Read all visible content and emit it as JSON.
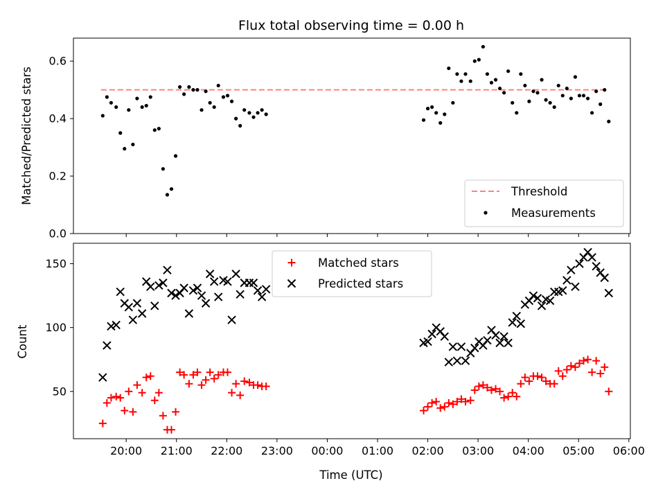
{
  "chart_data": [
    {
      "type": "scatter",
      "title": "Flux total observing time = 0.00 h",
      "xlabel": "",
      "ylabel": "Matched/Predicted stars",
      "ylim": [
        0,
        0.68
      ],
      "yticks": [
        "0.0",
        "0.2",
        "0.4",
        "0.6"
      ],
      "xlim_hours": [
        18.95,
        30.03
      ],
      "legend_position": "lower-right",
      "grid": false,
      "threshold": {
        "name": "Threshold",
        "y": 0.5,
        "x_start": "19:30",
        "x_end": "05:35",
        "color": "#ff8080",
        "style": "dashed"
      },
      "series": [
        {
          "name": "Measurements",
          "marker": "dot",
          "color": "#000000",
          "points": [
            [
              "19:32",
              0.41
            ],
            [
              "19:37",
              0.475
            ],
            [
              "19:42",
              0.455
            ],
            [
              "19:48",
              0.44
            ],
            [
              "19:53",
              0.35
            ],
            [
              "19:58",
              0.295
            ],
            [
              "20:03",
              0.43
            ],
            [
              "20:08",
              0.31
            ],
            [
              "20:13",
              0.47
            ],
            [
              "20:19",
              0.44
            ],
            [
              "20:24",
              0.445
            ],
            [
              "20:29",
              0.475
            ],
            [
              "20:34",
              0.36
            ],
            [
              "20:39",
              0.365
            ],
            [
              "20:44",
              0.225
            ],
            [
              "20:49",
              0.135
            ],
            [
              "20:54",
              0.155
            ],
            [
              "20:59",
              0.27
            ],
            [
              "21:04",
              0.51
            ],
            [
              "21:09",
              0.485
            ],
            [
              "21:15",
              0.51
            ],
            [
              "21:20",
              0.5
            ],
            [
              "21:25",
              0.5
            ],
            [
              "21:30",
              0.43
            ],
            [
              "21:35",
              0.495
            ],
            [
              "21:40",
              0.455
            ],
            [
              "21:45",
              0.44
            ],
            [
              "21:50",
              0.515
            ],
            [
              "21:56",
              0.475
            ],
            [
              "22:01",
              0.48
            ],
            [
              "22:06",
              0.46
            ],
            [
              "22:11",
              0.4
            ],
            [
              "22:16",
              0.375
            ],
            [
              "22:21",
              0.43
            ],
            [
              "22:27",
              0.42
            ],
            [
              "22:32",
              0.405
            ],
            [
              "22:37",
              0.42
            ],
            [
              "22:42",
              0.43
            ],
            [
              "22:47",
              0.415
            ],
            [
              "01:55",
              0.395
            ],
            [
              "02:00",
              0.435
            ],
            [
              "02:05",
              0.44
            ],
            [
              "02:10",
              0.42
            ],
            [
              "02:15",
              0.385
            ],
            [
              "02:20",
              0.415
            ],
            [
              "02:25",
              0.575
            ],
            [
              "02:30",
              0.455
            ],
            [
              "02:35",
              0.555
            ],
            [
              "02:40",
              0.53
            ],
            [
              "02:45",
              0.555
            ],
            [
              "02:51",
              0.53
            ],
            [
              "02:56",
              0.6
            ],
            [
              "03:01",
              0.605
            ],
            [
              "03:06",
              0.65
            ],
            [
              "03:11",
              0.555
            ],
            [
              "03:16",
              0.525
            ],
            [
              "03:21",
              0.535
            ],
            [
              "03:26",
              0.505
            ],
            [
              "03:31",
              0.49
            ],
            [
              "03:36",
              0.565
            ],
            [
              "03:41",
              0.455
            ],
            [
              "03:46",
              0.42
            ],
            [
              "03:51",
              0.555
            ],
            [
              "03:56",
              0.515
            ],
            [
              "04:01",
              0.46
            ],
            [
              "04:06",
              0.495
            ],
            [
              "04:11",
              0.49
            ],
            [
              "04:16",
              0.535
            ],
            [
              "04:21",
              0.465
            ],
            [
              "04:26",
              0.455
            ],
            [
              "04:31",
              0.44
            ],
            [
              "04:36",
              0.515
            ],
            [
              "04:41",
              0.48
            ],
            [
              "04:46",
              0.505
            ],
            [
              "04:51",
              0.47
            ],
            [
              "04:56",
              0.545
            ],
            [
              "05:01",
              0.48
            ],
            [
              "05:06",
              0.48
            ],
            [
              "05:11",
              0.47
            ],
            [
              "05:16",
              0.42
            ],
            [
              "05:21",
              0.495
            ],
            [
              "05:26",
              0.45
            ],
            [
              "05:31",
              0.5
            ],
            [
              "05:36",
              0.39
            ]
          ]
        }
      ]
    },
    {
      "type": "scatter",
      "title": "",
      "xlabel": "Time (UTC)",
      "ylabel": "Count",
      "ylim": [
        13,
        166
      ],
      "yticks": [
        "50",
        "100",
        "150"
      ],
      "xlim_hours": [
        18.95,
        30.03
      ],
      "xticks": [
        "20:00",
        "21:00",
        "22:00",
        "23:00",
        "00:00",
        "01:00",
        "02:00",
        "03:00",
        "04:00",
        "05:00",
        "06:00"
      ],
      "legend_position": "upper-center",
      "grid": false,
      "series": [
        {
          "name": "Matched stars",
          "marker": "plus",
          "color": "#ff0000",
          "points": [
            [
              "19:32",
              25
            ],
            [
              "19:37",
              41
            ],
            [
              "19:42",
              45
            ],
            [
              "19:48",
              46
            ],
            [
              "19:53",
              45
            ],
            [
              "19:58",
              35
            ],
            [
              "20:03",
              50
            ],
            [
              "20:08",
              34
            ],
            [
              "20:13",
              55
            ],
            [
              "20:19",
              49
            ],
            [
              "20:24",
              61
            ],
            [
              "20:29",
              62
            ],
            [
              "20:34",
              43
            ],
            [
              "20:39",
              49
            ],
            [
              "20:44",
              31
            ],
            [
              "20:49",
              20
            ],
            [
              "20:54",
              20
            ],
            [
              "20:59",
              34
            ],
            [
              "21:04",
              65
            ],
            [
              "21:09",
              63
            ],
            [
              "21:15",
              56
            ],
            [
              "21:20",
              63
            ],
            [
              "21:25",
              65
            ],
            [
              "21:30",
              55
            ],
            [
              "21:35",
              59
            ],
            [
              "21:40",
              65
            ],
            [
              "21:45",
              60
            ],
            [
              "21:50",
              63
            ],
            [
              "21:56",
              65
            ],
            [
              "22:01",
              65
            ],
            [
              "22:06",
              49
            ],
            [
              "22:11",
              56
            ],
            [
              "22:16",
              47
            ],
            [
              "22:21",
              58
            ],
            [
              "22:27",
              57
            ],
            [
              "22:32",
              55
            ],
            [
              "22:37",
              55
            ],
            [
              "22:42",
              54
            ],
            [
              "22:47",
              54
            ],
            [
              "01:55",
              35
            ],
            [
              "02:00",
              38
            ],
            [
              "02:05",
              41
            ],
            [
              "02:10",
              42
            ],
            [
              "02:15",
              37
            ],
            [
              "02:20",
              38
            ],
            [
              "02:25",
              41
            ],
            [
              "02:30",
              40
            ],
            [
              "02:35",
              42
            ],
            [
              "02:40",
              44
            ],
            [
              "02:45",
              42
            ],
            [
              "02:51",
              43
            ],
            [
              "02:56",
              51
            ],
            [
              "03:01",
              54
            ],
            [
              "03:06",
              55
            ],
            [
              "03:11",
              53
            ],
            [
              "03:16",
              51
            ],
            [
              "03:21",
              52
            ],
            [
              "03:26",
              50
            ],
            [
              "03:31",
              45
            ],
            [
              "03:36",
              46
            ],
            [
              "03:41",
              49
            ],
            [
              "03:46",
              46
            ],
            [
              "03:51",
              56
            ],
            [
              "03:56",
              61
            ],
            [
              "04:01",
              58
            ],
            [
              "04:06",
              62
            ],
            [
              "04:11",
              62
            ],
            [
              "04:16",
              61
            ],
            [
              "04:21",
              58
            ],
            [
              "04:26",
              56
            ],
            [
              "04:31",
              56
            ],
            [
              "04:36",
              66
            ],
            [
              "04:41",
              62
            ],
            [
              "04:46",
              67
            ],
            [
              "04:51",
              70
            ],
            [
              "04:56",
              69
            ],
            [
              "05:01",
              72
            ],
            [
              "05:06",
              74
            ],
            [
              "05:11",
              75
            ],
            [
              "05:16",
              65
            ],
            [
              "05:21",
              74
            ],
            [
              "05:26",
              64
            ],
            [
              "05:31",
              69
            ],
            [
              "05:36",
              50
            ]
          ]
        },
        {
          "name": "Predicted stars",
          "marker": "x",
          "color": "#000000",
          "points": [
            [
              "19:32",
              61
            ],
            [
              "19:37",
              86
            ],
            [
              "19:42",
              101
            ],
            [
              "19:48",
              102
            ],
            [
              "19:53",
              128
            ],
            [
              "19:58",
              119
            ],
            [
              "20:03",
              116
            ],
            [
              "20:08",
              106
            ],
            [
              "20:13",
              119
            ],
            [
              "20:19",
              111
            ],
            [
              "20:24",
              136
            ],
            [
              "20:29",
              132
            ],
            [
              "20:34",
              117
            ],
            [
              "20:39",
              133
            ],
            [
              "20:44",
              135
            ],
            [
              "20:49",
              145
            ],
            [
              "20:54",
              127
            ],
            [
              "20:59",
              125
            ],
            [
              "21:04",
              127
            ],
            [
              "21:09",
              131
            ],
            [
              "21:15",
              111
            ],
            [
              "21:20",
              129
            ],
            [
              "21:25",
              131
            ],
            [
              "21:30",
              125
            ],
            [
              "21:35",
              119
            ],
            [
              "21:40",
              142
            ],
            [
              "21:45",
              136
            ],
            [
              "21:50",
              124
            ],
            [
              "21:56",
              137
            ],
            [
              "22:01",
              136
            ],
            [
              "22:06",
              106
            ],
            [
              "22:11",
              142
            ],
            [
              "22:16",
              126
            ],
            [
              "22:21",
              135
            ],
            [
              "22:27",
              135
            ],
            [
              "22:32",
              135
            ],
            [
              "22:37",
              129
            ],
            [
              "22:42",
              124
            ],
            [
              "22:47",
              130
            ],
            [
              "01:55",
              88
            ],
            [
              "02:00",
              89
            ],
            [
              "02:05",
              95
            ],
            [
              "02:10",
              100
            ],
            [
              "02:15",
              97
            ],
            [
              "02:20",
              93
            ],
            [
              "02:25",
              73
            ],
            [
              "02:30",
              85
            ],
            [
              "02:35",
              74
            ],
            [
              "02:40",
              85
            ],
            [
              "02:45",
              74
            ],
            [
              "02:51",
              80
            ],
            [
              "02:56",
              84
            ],
            [
              "03:01",
              89
            ],
            [
              "03:06",
              86
            ],
            [
              "03:11",
              90
            ],
            [
              "03:16",
              98
            ],
            [
              "03:21",
              94
            ],
            [
              "03:26",
              88
            ],
            [
              "03:31",
              93
            ],
            [
              "03:36",
              88
            ],
            [
              "03:41",
              104
            ],
            [
              "03:46",
              109
            ],
            [
              "03:51",
              103
            ],
            [
              "03:56",
              118
            ],
            [
              "04:01",
              121
            ],
            [
              "04:06",
              125
            ],
            [
              "04:11",
              123
            ],
            [
              "04:16",
              117
            ],
            [
              "04:21",
              122
            ],
            [
              "04:26",
              121
            ],
            [
              "04:31",
              128
            ],
            [
              "04:36",
              128
            ],
            [
              "04:41",
              129
            ],
            [
              "04:46",
              137
            ],
            [
              "04:51",
              145
            ],
            [
              "04:56",
              132
            ],
            [
              "05:01",
              150
            ],
            [
              "05:06",
              155
            ],
            [
              "05:11",
              159
            ],
            [
              "05:16",
              155
            ],
            [
              "05:21",
              148
            ],
            [
              "05:26",
              143
            ],
            [
              "05:31",
              139
            ],
            [
              "05:36",
              127
            ]
          ]
        }
      ]
    }
  ]
}
